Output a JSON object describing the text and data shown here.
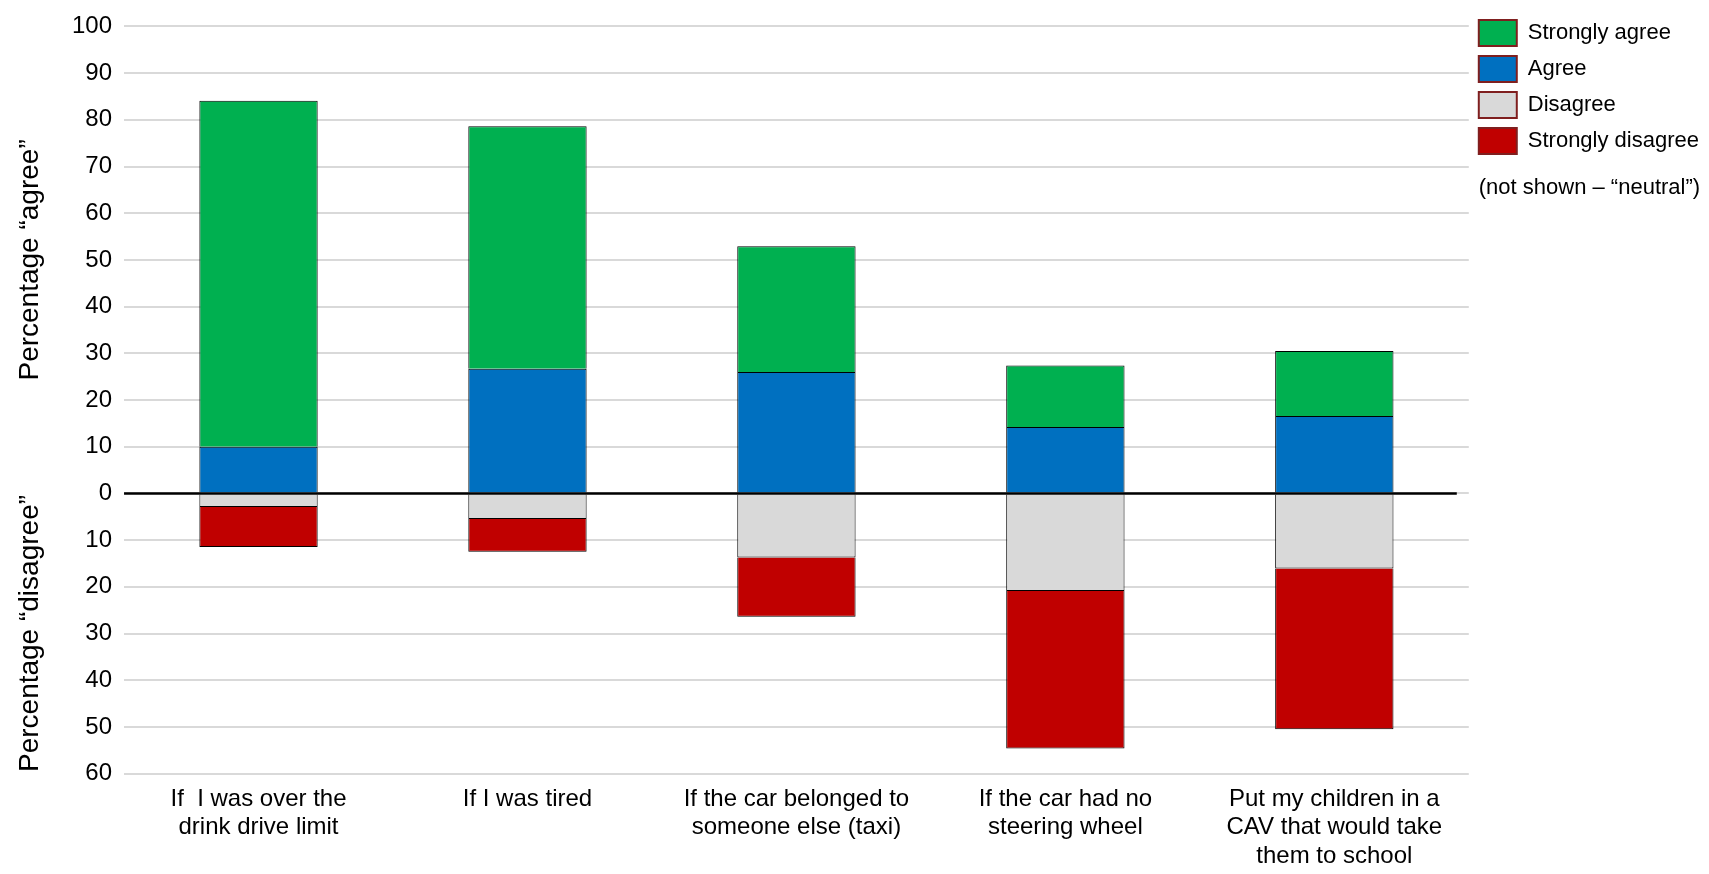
{
  "chart_data": {
    "type": "bar",
    "stacked": true,
    "ylabel": "Percentage “agree”",
    "categories": [
      "If  I was over the drink drive limit",
      "If I was tired",
      "If the car belonged to someone else (taxi)",
      "If the car had no steering wheel",
      "Put my children in a CAV that would take them to school"
    ],
    "series": [
      {
        "name": "Agree",
        "color": "#0070c0",
        "values": [
          10,
          26.7,
          26,
          14.2,
          16.6
        ]
      },
      {
        "name": "Strongly agree",
        "color": "#00b050",
        "values": [
          74.1,
          51.9,
          26.9,
          13.2,
          13.9
        ]
      },
      {
        "name": "Disagree",
        "color": "#d9d9d9",
        "values": [
          -2.9,
          -5.5,
          -13.7,
          -20.9,
          -16.1
        ]
      },
      {
        "name": "Strongly disagree",
        "color": "#c00000",
        "values": [
          -8.6,
          -7,
          -12.7,
          -33.7,
          -34.4
        ]
      }
    ],
    "ylim": [
      -60,
      100
    ],
    "yticks": [
      {
        "value": -60,
        "label": "60"
      },
      {
        "value": -50,
        "label": "50"
      },
      {
        "value": -40,
        "label": "40"
      },
      {
        "value": -30,
        "label": "30"
      },
      {
        "value": -20,
        "label": "20"
      },
      {
        "value": -10,
        "label": "10"
      },
      0,
      10,
      20,
      30,
      40,
      50,
      60,
      70,
      80,
      90,
      100
    ],
    "grid": "y",
    "legend": "top right",
    "annotations": [
      "Percentage “disagree”",
      "(not shown – “neutral”)"
    ]
  }
}
